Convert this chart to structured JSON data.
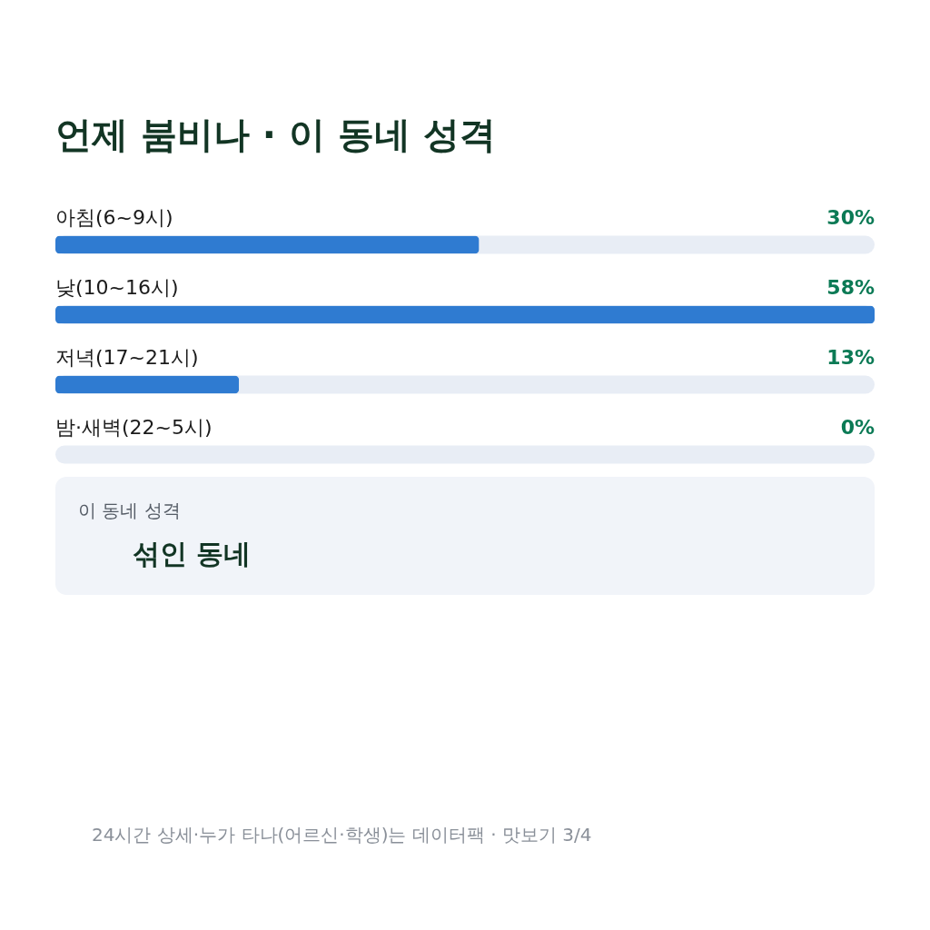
{
  "chart_data": {
    "type": "bar",
    "orientation": "horizontal",
    "title": "언제 붐비나 · 이 동네 성격",
    "categories": [
      "아침(6~9시)",
      "낮(10~16시)",
      "저녁(17~21시)",
      "밤·새벽(22~5시)"
    ],
    "values": [
      30,
      58,
      13,
      0
    ],
    "color": "#2f7bd1",
    "data_labels": true,
    "value_labels": [
      "30%",
      "58%",
      "13%",
      "0%"
    ],
    "annotations": [
      "이 동네 성격",
      "섞인 동네",
      "24시간 상세·누가 타나(어르신·학생)는 데이터팩 · 맛보기 3/4"
    ]
  }
}
